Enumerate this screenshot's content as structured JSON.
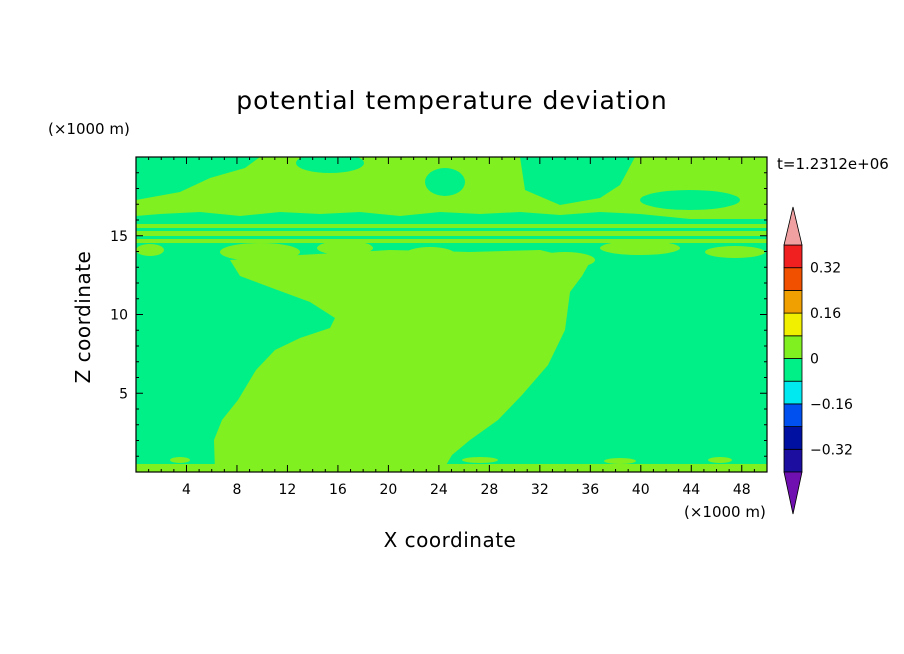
{
  "chart_data": {
    "type": "heatmap",
    "title": "potential temperature deviation",
    "xlabel": "X coordinate",
    "ylabel": "Z coordinate",
    "x_unit": "(×1000 m)",
    "y_unit": "(×1000 m)",
    "time_label": "t=1.2312e+06",
    "xlim": [
      0,
      50
    ],
    "ylim": [
      0,
      20
    ],
    "x_ticks": [
      "4",
      "8",
      "12",
      "16",
      "20",
      "24",
      "28",
      "32",
      "36",
      "40",
      "44",
      "48"
    ],
    "y_ticks": [
      "5",
      "10",
      "15"
    ],
    "colorbar": {
      "levels": [
        -0.4,
        -0.32,
        -0.24,
        -0.16,
        -0.08,
        0,
        0.08,
        0.16,
        0.24,
        0.32,
        0.4
      ],
      "labels": [
        "0.32",
        "0.16",
        "0",
        "−0.16",
        "−0.32"
      ],
      "colors": [
        "#1c0e9e",
        "#0010a0",
        "#0050f0",
        "#00e8f0",
        "#00f088",
        "#80f020",
        "#f0f000",
        "#f0a000",
        "#f05000",
        "#f02020"
      ],
      "over_color": "#f0a0a0",
      "under_color": "#7010b0"
    },
    "field_colors": {
      "background": "#00f088",
      "warm": "#80f020"
    }
  }
}
